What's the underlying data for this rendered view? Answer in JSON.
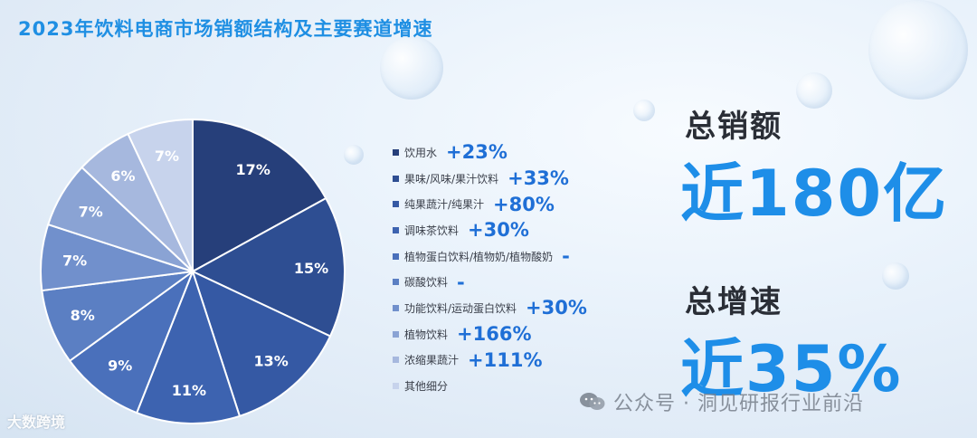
{
  "title": "2023年饮料电商市场销额结构及主要赛道增速",
  "chart_data": {
    "type": "pie",
    "title": "2023年饮料电商市场销额结构及主要赛道增速",
    "categories": [
      "饮用水",
      "果味/风味/果汁饮料",
      "纯果蔬汁/纯果汁",
      "调味茶饮料",
      "植物蛋白饮料/植物奶/植物酸奶",
      "碳酸饮料",
      "功能饮料/运动蛋白饮料",
      "植物饮料",
      "浓缩果蔬汁",
      "其他细分"
    ],
    "values": [
      17,
      15,
      13,
      11,
      9,
      8,
      7,
      7,
      6,
      7
    ],
    "value_labels": [
      "17%",
      "15%",
      "13%",
      "11%",
      "9%",
      "8%",
      "7%",
      "7%",
      "6%",
      "7%"
    ],
    "growth": [
      "+23%",
      "+33%",
      "+80%",
      "+30%",
      "-",
      "-",
      "+30%",
      "+166%",
      "+111%",
      ""
    ],
    "colors": [
      "#263f7a",
      "#2e4e92",
      "#3559a4",
      "#3d63b0",
      "#4a70bb",
      "#5b7fc3",
      "#7190cc",
      "#8aa3d4",
      "#a6b8de",
      "#c7d3ec"
    ],
    "legend_position": "right"
  },
  "total_sales": {
    "label": "总销额",
    "value": "近180亿"
  },
  "total_growth": {
    "label": "总增速",
    "value": "近35%"
  },
  "watermark_left": "大数跨境",
  "watermark_right": "公众号 · 洞见研报行业前沿",
  "icons": {
    "wechat": "wechat-icon"
  }
}
